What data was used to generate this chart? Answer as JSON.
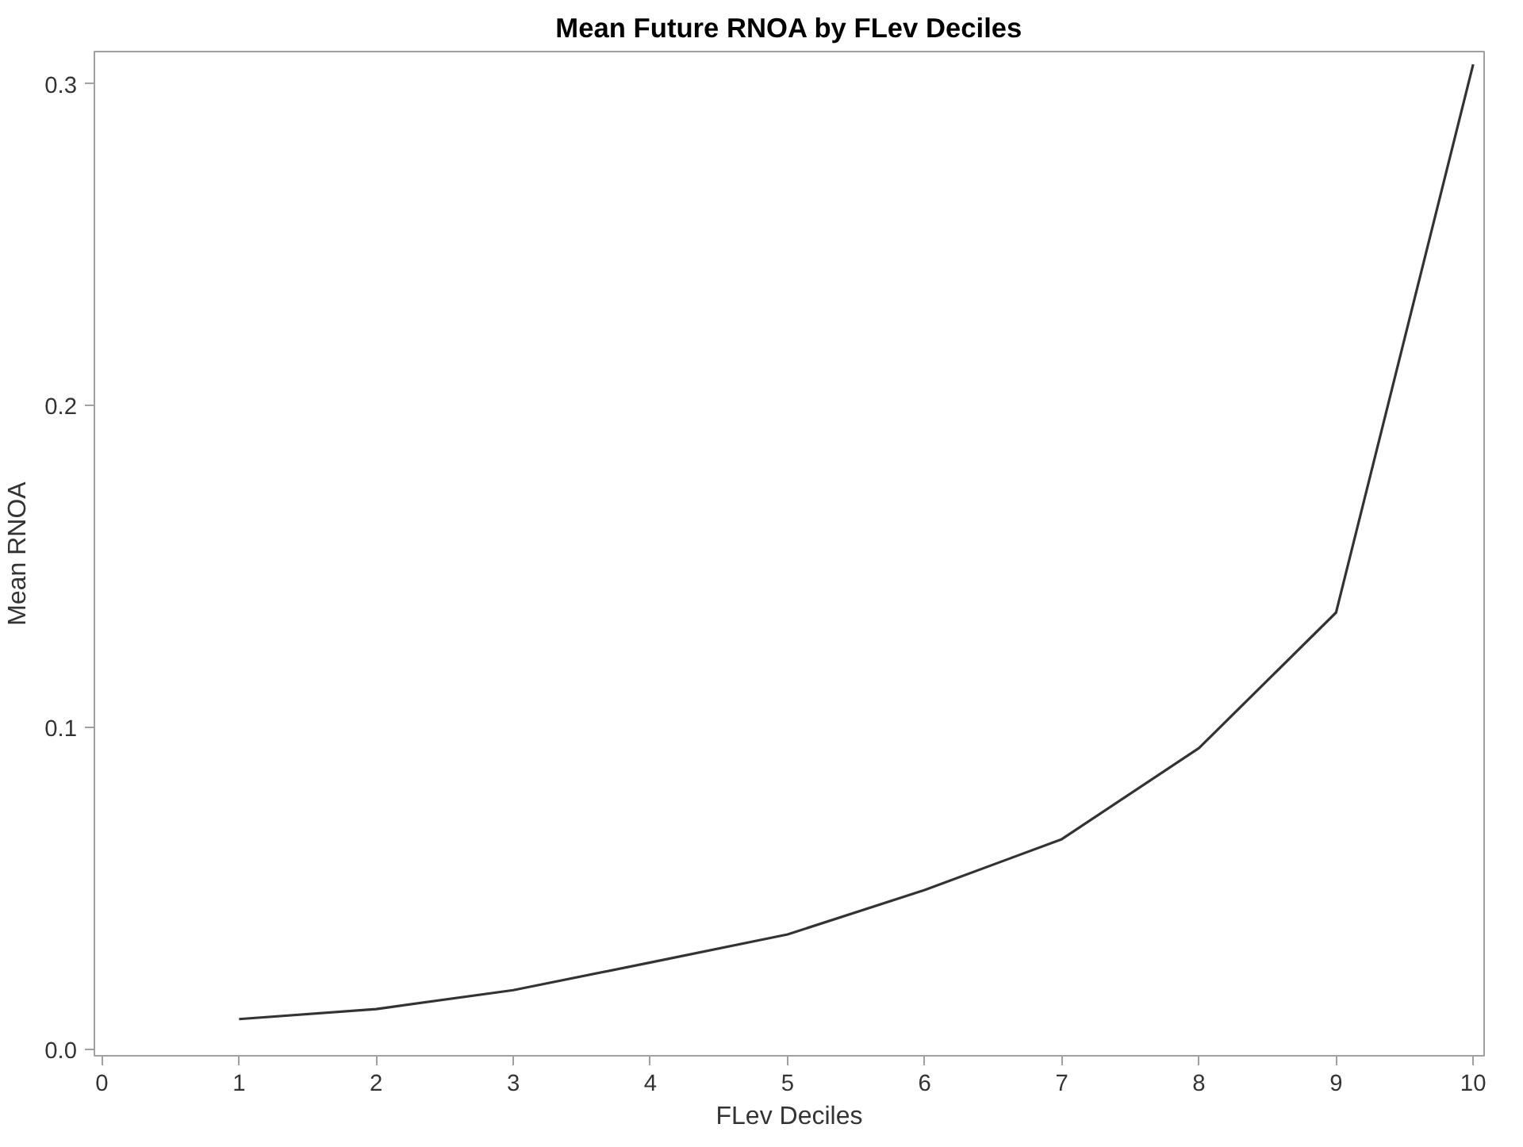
{
  "chart_data": {
    "type": "line",
    "title": "Mean Future RNOA by FLev Deciles",
    "xlabel": "FLev Deciles",
    "ylabel": "Mean RNOA",
    "x": [
      1,
      2,
      3,
      4,
      5,
      6,
      7,
      8,
      9,
      10
    ],
    "series": [
      {
        "color": "#333333",
        "values": [
          0.0094,
          0.0125,
          0.0184,
          0.027,
          0.0357,
          0.0495,
          0.0653,
          0.0936,
          0.1357,
          0.306
        ]
      }
    ],
    "xlim": [
      -0.055,
      10.08
    ],
    "ylim": [
      -0.002,
      0.31
    ],
    "xticks": [
      0,
      1,
      2,
      3,
      4,
      5,
      6,
      7,
      8,
      9,
      10
    ],
    "yticks": [
      {
        "value": 0,
        "label": "0.0"
      },
      {
        "value": 0.1,
        "label": "0.1"
      },
      {
        "value": 0.2,
        "label": "0.2"
      },
      {
        "value": 0.3,
        "label": "0.3"
      }
    ],
    "grid": false,
    "line_style": "solid"
  }
}
